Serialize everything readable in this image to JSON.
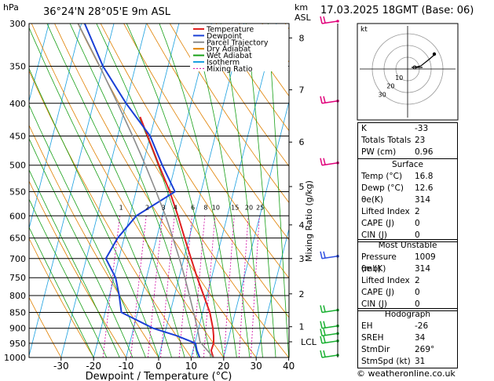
{
  "header": {
    "hpa_label": "hPa",
    "location": "36°24'N  28°05'E  9m  ASL",
    "km_label": "km",
    "asl_label": "ASL",
    "date": "17.03.2025  18GMT  (Base: 06)"
  },
  "legend": [
    {
      "label": "Temperature",
      "color": "#e02020"
    },
    {
      "label": "Dewpoint",
      "color": "#1a3fd6"
    },
    {
      "label": "Parcel Trajectory",
      "color": "#8c8c8c"
    },
    {
      "label": "Dry Adiabat",
      "color": "#e08000"
    },
    {
      "label": "Wet Adiabat",
      "color": "#18a018"
    },
    {
      "label": "Isotherm",
      "color": "#1aa0e0"
    },
    {
      "label": "Mixing Ratio",
      "color": "#d000a0"
    }
  ],
  "chart_data": {
    "type": "line",
    "title": "36°24'N  28°05'E  9m  ASL",
    "xlabel": "Dewpoint / Temperature (°C)",
    "ylabel": "hPa",
    "y2label": "Mixing Ratio (g/kg)",
    "xlim": [
      -40,
      40
    ],
    "ylim": [
      1000,
      300
    ],
    "x_ticks": [
      -30,
      -20,
      -10,
      0,
      10,
      20,
      30,
      40
    ],
    "pressure_levels": [
      300,
      350,
      400,
      450,
      500,
      550,
      600,
      650,
      700,
      750,
      800,
      850,
      900,
      950,
      1000
    ],
    "km_ticks": [
      {
        "p": 316,
        "label": "8"
      },
      {
        "p": 381,
        "label": "7"
      },
      {
        "p": 460,
        "label": "6"
      },
      {
        "p": 540,
        "label": "5"
      },
      {
        "p": 620,
        "label": "4"
      },
      {
        "p": 700,
        "label": "3"
      },
      {
        "p": 795,
        "label": "2"
      },
      {
        "p": 895,
        "label": "1"
      },
      {
        "p": 945,
        "label": "LCL"
      }
    ],
    "mixing_ratio_labels": [
      "1",
      "2",
      "3",
      "4",
      "6",
      "8",
      "10",
      "15",
      "20",
      "25"
    ],
    "mixing_ratio_label_p": 580,
    "series": [
      {
        "name": "Temperature",
        "color": "#e02020",
        "points": [
          [
            1000,
            16.8
          ],
          [
            975,
            15.6
          ],
          [
            950,
            15.8
          ],
          [
            925,
            15.2
          ],
          [
            900,
            14.4
          ],
          [
            850,
            12.2
          ],
          [
            800,
            9.0
          ],
          [
            750,
            5.6
          ],
          [
            700,
            2.2
          ],
          [
            650,
            -1.4
          ],
          [
            600,
            -5.2
          ],
          [
            550,
            -9.6
          ],
          [
            500,
            -15.0
          ],
          [
            450,
            -20.8
          ],
          [
            420,
            -24.6
          ]
        ]
      },
      {
        "name": "Dewpoint",
        "color": "#1a3fd6",
        "points": [
          [
            1000,
            12.6
          ],
          [
            975,
            11.2
          ],
          [
            950,
            10.2
          ],
          [
            925,
            4.0
          ],
          [
            900,
            -4.0
          ],
          [
            850,
            -15.0
          ],
          [
            800,
            -17.0
          ],
          [
            750,
            -19.5
          ],
          [
            700,
            -24.0
          ],
          [
            650,
            -22.0
          ],
          [
            600,
            -18.0
          ],
          [
            550,
            -8.0
          ],
          [
            500,
            -14.0
          ],
          [
            450,
            -20.0
          ],
          [
            400,
            -30.0
          ],
          [
            350,
            -40.0
          ],
          [
            300,
            -49.0
          ]
        ]
      },
      {
        "name": "Parcel Trajectory",
        "color": "#8c8c8c",
        "points": [
          [
            1000,
            16.8
          ],
          [
            950,
            12.0
          ],
          [
            945,
            11.5
          ],
          [
            900,
            9.6
          ],
          [
            850,
            7.2
          ],
          [
            800,
            4.6
          ],
          [
            750,
            1.8
          ],
          [
            700,
            -1.4
          ],
          [
            650,
            -5.0
          ],
          [
            600,
            -9.0
          ],
          [
            550,
            -13.8
          ],
          [
            500,
            -19.2
          ],
          [
            450,
            -25.4
          ],
          [
            400,
            -32.6
          ],
          [
            350,
            -41.0
          ],
          [
            300,
            -51.0
          ]
        ]
      }
    ]
  },
  "hodograph": {
    "unit_label": "kt",
    "ring_labels": [
      "10",
      "20",
      "30"
    ]
  },
  "indices": {
    "top": [
      {
        "label": "K",
        "value": "-33"
      },
      {
        "label": "Totals Totals",
        "value": "23"
      },
      {
        "label": "PW (cm)",
        "value": "0.96"
      }
    ],
    "surface": {
      "title": "Surface",
      "rows": [
        {
          "label": "Temp (°C)",
          "value": "16.8"
        },
        {
          "label": "Dewp (°C)",
          "value": "12.6"
        },
        {
          "label": "θe(K)",
          "value": "314"
        },
        {
          "label": "Lifted Index",
          "value": "2"
        },
        {
          "label": "CAPE (J)",
          "value": "0"
        },
        {
          "label": "CIN (J)",
          "value": "0"
        }
      ]
    },
    "unstable": {
      "title": "Most Unstable",
      "rows": [
        {
          "label": "Pressure (mb)",
          "value": "1009"
        },
        {
          "label": "θe (K)",
          "value": "314"
        },
        {
          "label": "Lifted Index",
          "value": "2"
        },
        {
          "label": "CAPE (J)",
          "value": "0"
        },
        {
          "label": "CIN (J)",
          "value": "0"
        }
      ]
    },
    "hodograph": {
      "title": "Hodograph",
      "rows": [
        {
          "label": "EH",
          "value": "-26"
        },
        {
          "label": "SREH",
          "value": "34"
        },
        {
          "label": "StmDir",
          "value": "269°"
        },
        {
          "label": "StmSpd (kt)",
          "value": "31"
        }
      ]
    }
  },
  "credit": "© weatheronline.co.uk"
}
